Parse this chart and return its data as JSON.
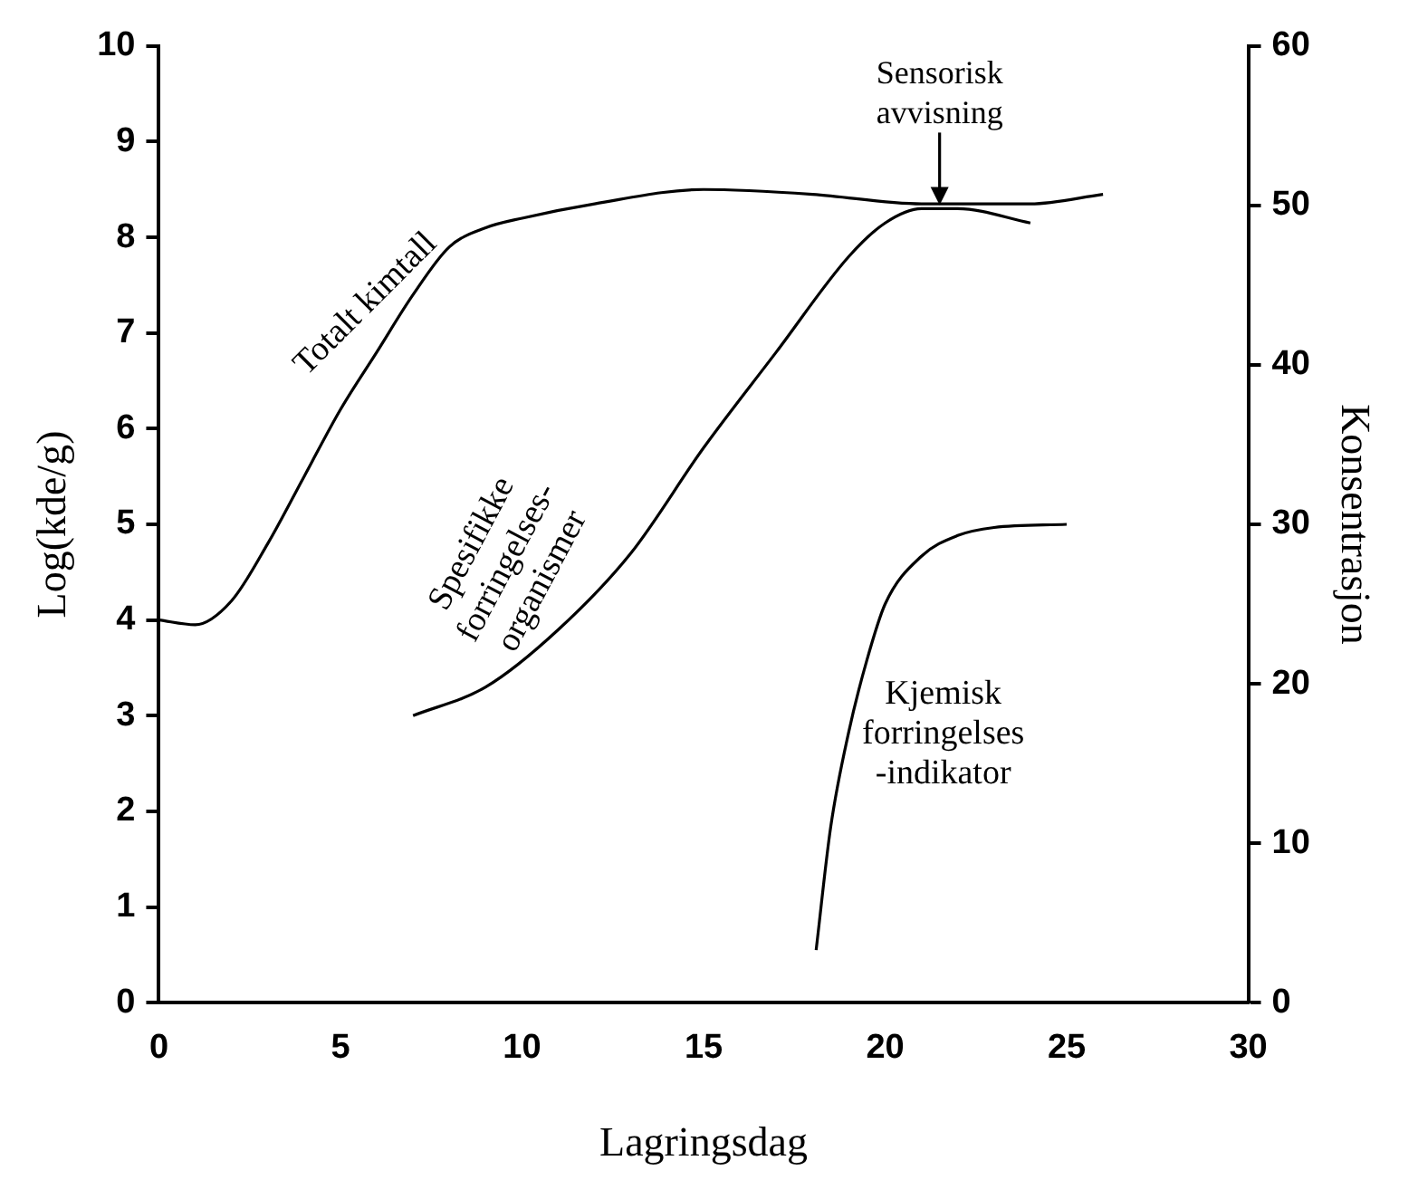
{
  "chart_data": {
    "type": "line",
    "xlabel": "Lagringsdag",
    "ylabel": "Log(kde/g)",
    "y2label": "Konsentrasjon",
    "xlim": [
      0,
      30
    ],
    "xticks": [
      0,
      5,
      10,
      15,
      20,
      25,
      30
    ],
    "ylim": [
      0,
      10
    ],
    "yticks": [
      0,
      1,
      2,
      3,
      4,
      5,
      6,
      7,
      8,
      9,
      10
    ],
    "y2lim": [
      0,
      60
    ],
    "y2ticks": [
      0,
      10,
      20,
      30,
      40,
      50,
      60
    ],
    "grid": false,
    "legend": false,
    "marker": "none",
    "line_style": "solid",
    "series": [
      {
        "name": "Totalt kimtall",
        "color": "#000000",
        "x": [
          0,
          1,
          2,
          3,
          4,
          5,
          6,
          7,
          8,
          9,
          10,
          12,
          15,
          18,
          21,
          24,
          26
        ],
        "values": [
          4.0,
          3.95,
          4.2,
          4.8,
          5.5,
          6.2,
          6.8,
          7.4,
          7.9,
          8.1,
          8.2,
          8.35,
          8.5,
          8.45,
          8.35,
          8.35,
          8.45
        ]
      },
      {
        "name": "Spesifikke forringelses-organismer",
        "color": "#000000",
        "x": [
          7,
          9,
          11,
          13,
          15,
          17,
          19,
          20,
          21,
          22,
          24
        ],
        "values": [
          3.0,
          3.3,
          3.9,
          4.7,
          5.8,
          6.8,
          7.8,
          8.15,
          8.3,
          8.3,
          8.15
        ]
      },
      {
        "name": "Kjemisk forringelses -indikator",
        "color": "#000000",
        "axis": "y2",
        "x": [
          18.1,
          18.5,
          19,
          19.5,
          20,
          21,
          22,
          23,
          25
        ],
        "values": [
          3.3,
          11,
          17,
          21.5,
          25,
          28,
          29.3,
          29.8,
          30
        ]
      }
    ],
    "annotations": [
      {
        "text": "Sensorisk avvisning",
        "x": 21.5,
        "y": 8.3
      }
    ]
  }
}
